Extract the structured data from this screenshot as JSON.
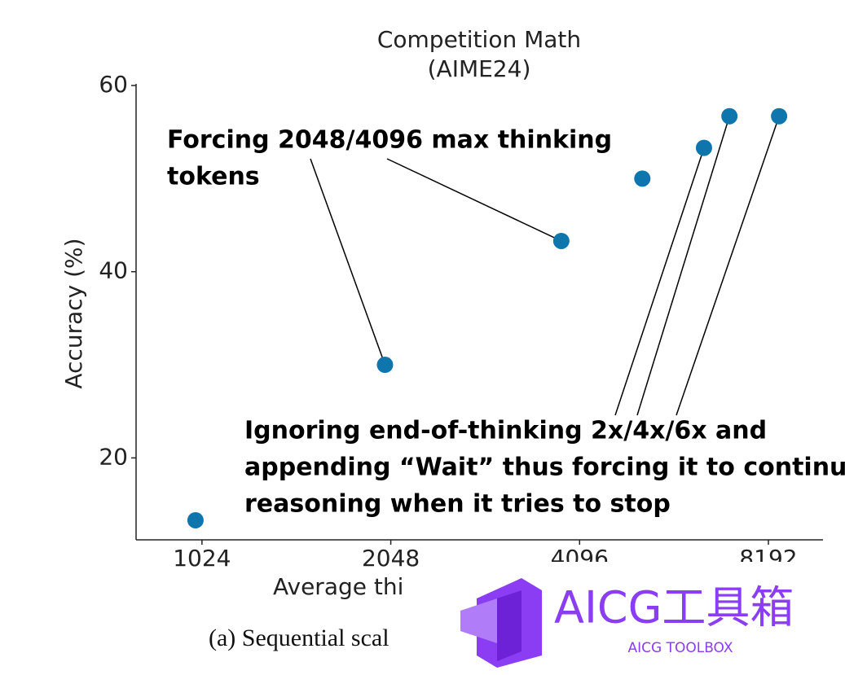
{
  "chart_data": {
    "type": "scatter",
    "title_lines": [
      "Competition Math",
      "(AIME24)"
    ],
    "x_label": "Average thi",
    "y_label": "Accuracy (%)",
    "caption": "(a) Sequential scal",
    "x_log_base": 2,
    "x": [
      1000,
      2005,
      3830,
      5157,
      6467,
      7100,
      8520
    ],
    "y": [
      13.3,
      30,
      43.3,
      50,
      53.3,
      56.7,
      56.7
    ],
    "color": "#0f76ad",
    "xlim": [
      804,
      10010
    ],
    "xticks": [
      1024,
      2048,
      4096,
      8192
    ],
    "ylim": [
      11.2,
      60
    ],
    "yticks": [
      20,
      40,
      60
    ],
    "annotations": [
      {
        "lines": [
          "Forcing 2048/4096 max thinking",
          "tokens"
        ]
      },
      {
        "lines": [
          "Ignoring end-of-thinking 2x/4x/6x and",
          "appending “Wait” thus forcing it to continue",
          "reasoning when it tries to stop"
        ]
      }
    ]
  },
  "watermark": {
    "title": "AICG工具箱",
    "subtitle": "AICG TOOLBOX"
  }
}
